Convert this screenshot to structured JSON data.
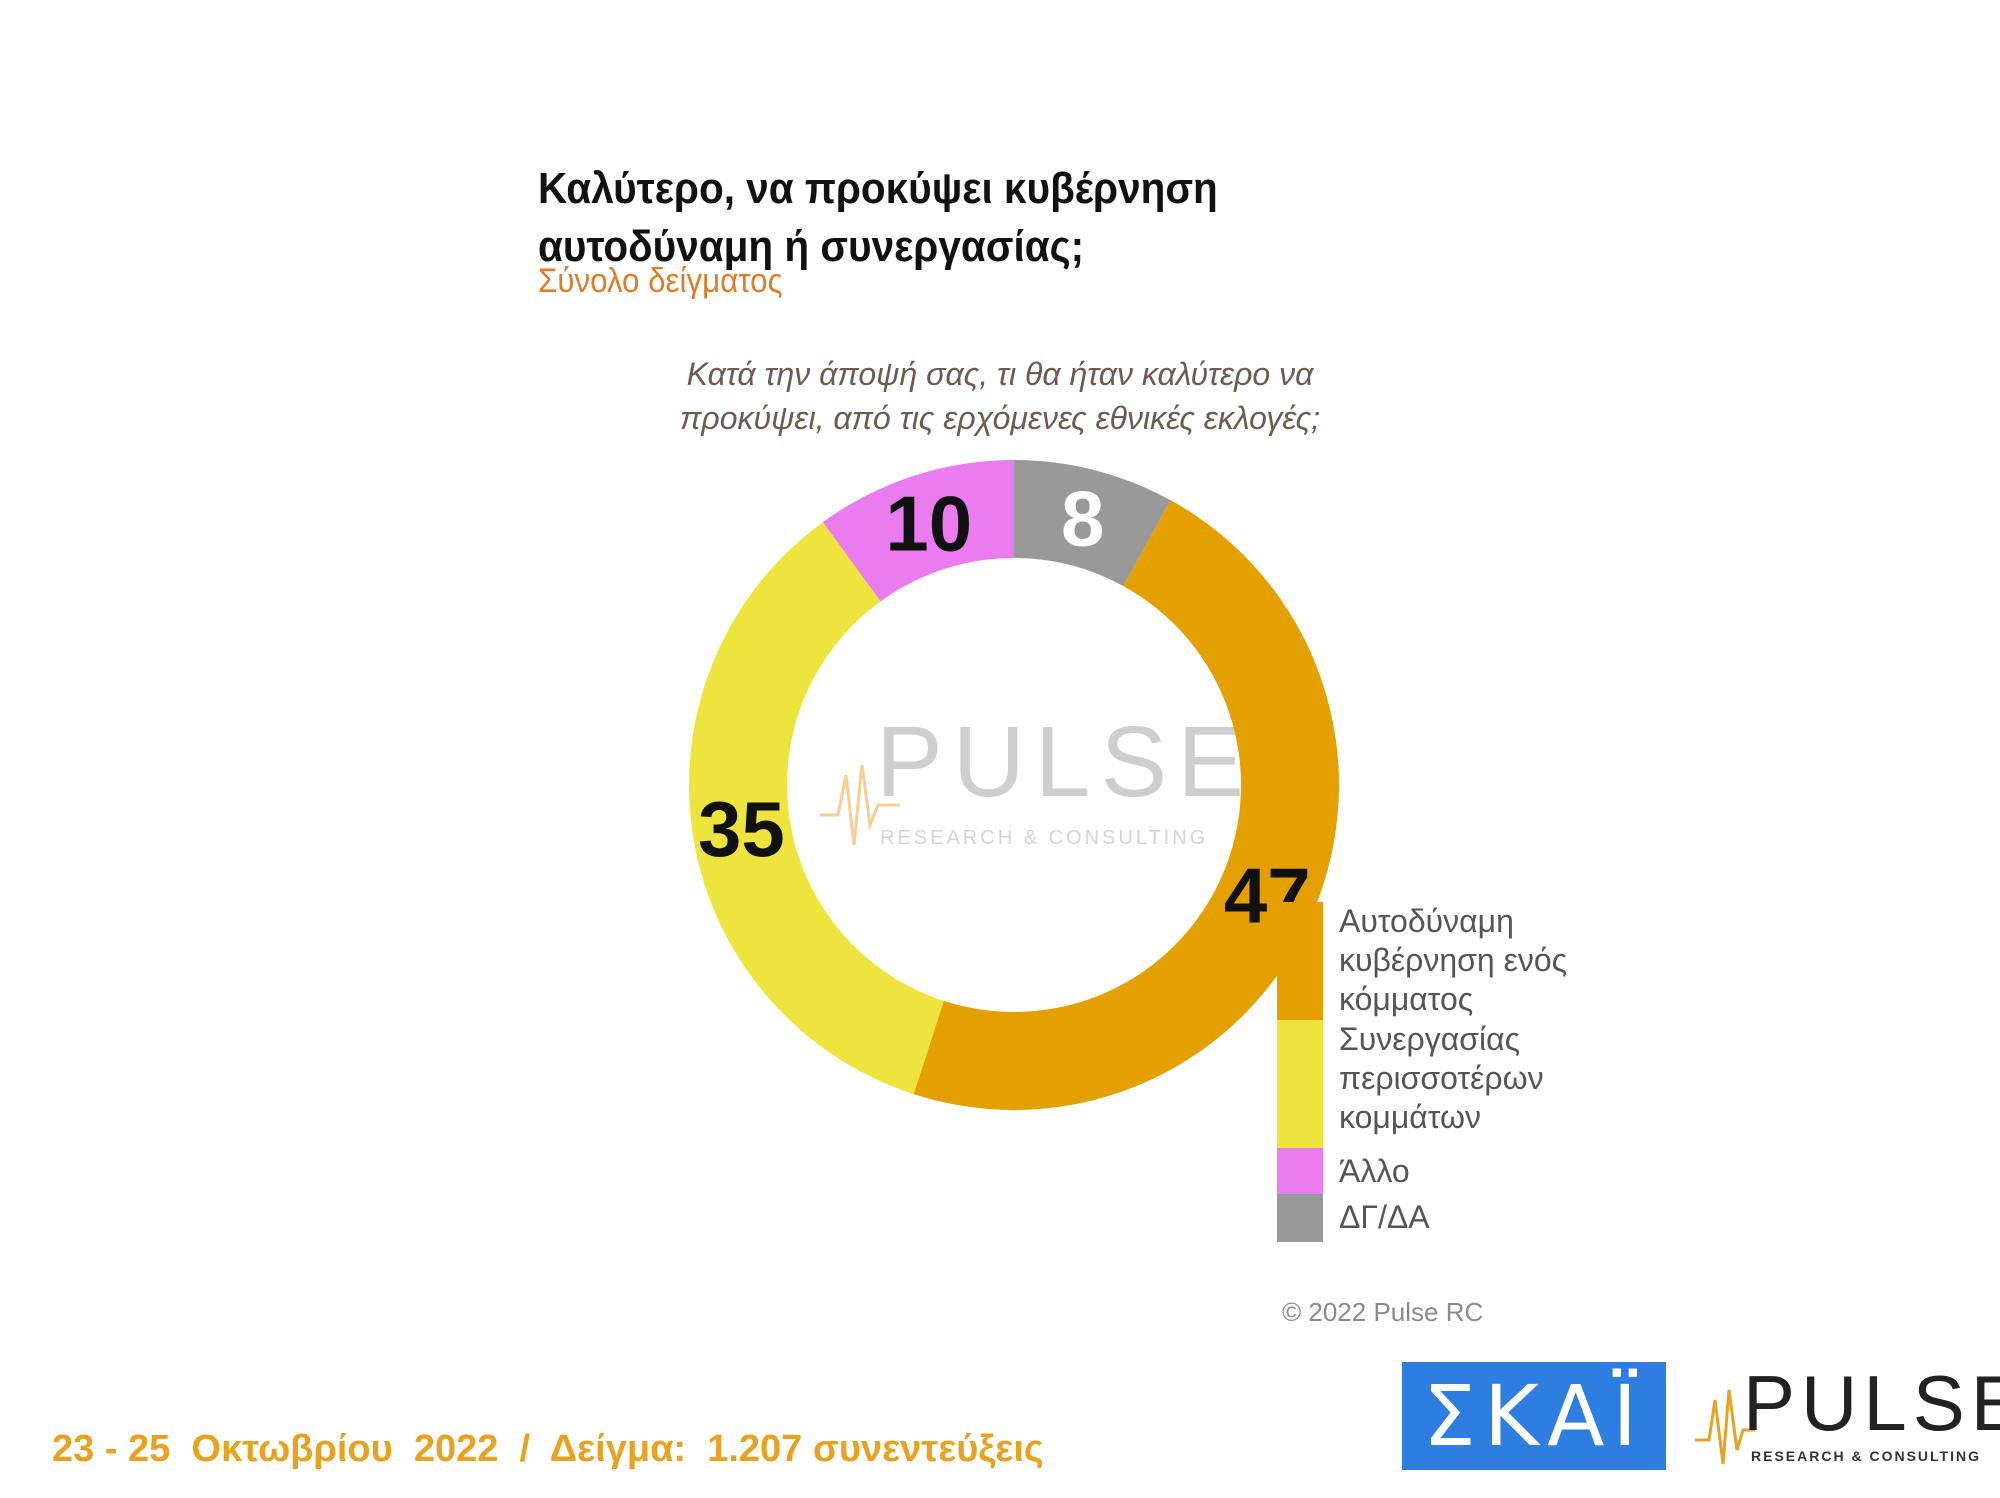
{
  "title": "Καλύτερο, να προκύψει κυβέρνηση αυτοδύναμη ή συνεργασίας;",
  "subtitle": "Σύνολο δείγματος",
  "question": "Κατά την άποψή σας, τι θα ήταν καλύτερο να προκύψει, από τις ερχόμενες εθνικές εκλογές;",
  "chart_data": {
    "type": "pie",
    "variant": "donut",
    "categories": [
      "Αυτοδύναμη κυβέρνηση ενός κόμματος",
      "Συνεργασίας περισσοτέρων κομμάτων",
      "Άλλο",
      "ΔΓ/ΔΑ"
    ],
    "values": [
      47,
      35,
      10,
      8
    ],
    "colors": [
      "#e4a000",
      "#ede53e",
      "#ea7cf0",
      "#999999"
    ],
    "data_label_colors": [
      "#111111",
      "#111111",
      "#111111",
      "#ffffff"
    ],
    "legend_position": "bottom-right"
  },
  "watermark": {
    "word": "PULSE",
    "tagline": "RESEARCH & CONSULTING"
  },
  "copyright": "© 2022 Pulse RC",
  "footer": "23 - 25  Οκτωβρίου  2022  /  Δείγμα:  1.207 συνεντεύξεις",
  "logos": {
    "skai": "ΣΚΑΪ",
    "pulse_word": "PULSE",
    "pulse_tagline": "RESEARCH & CONSULTING",
    "pulse_colors": {
      "text": "#222222",
      "wave": "#e8a21f"
    },
    "skai_color": "#2e7de1"
  }
}
